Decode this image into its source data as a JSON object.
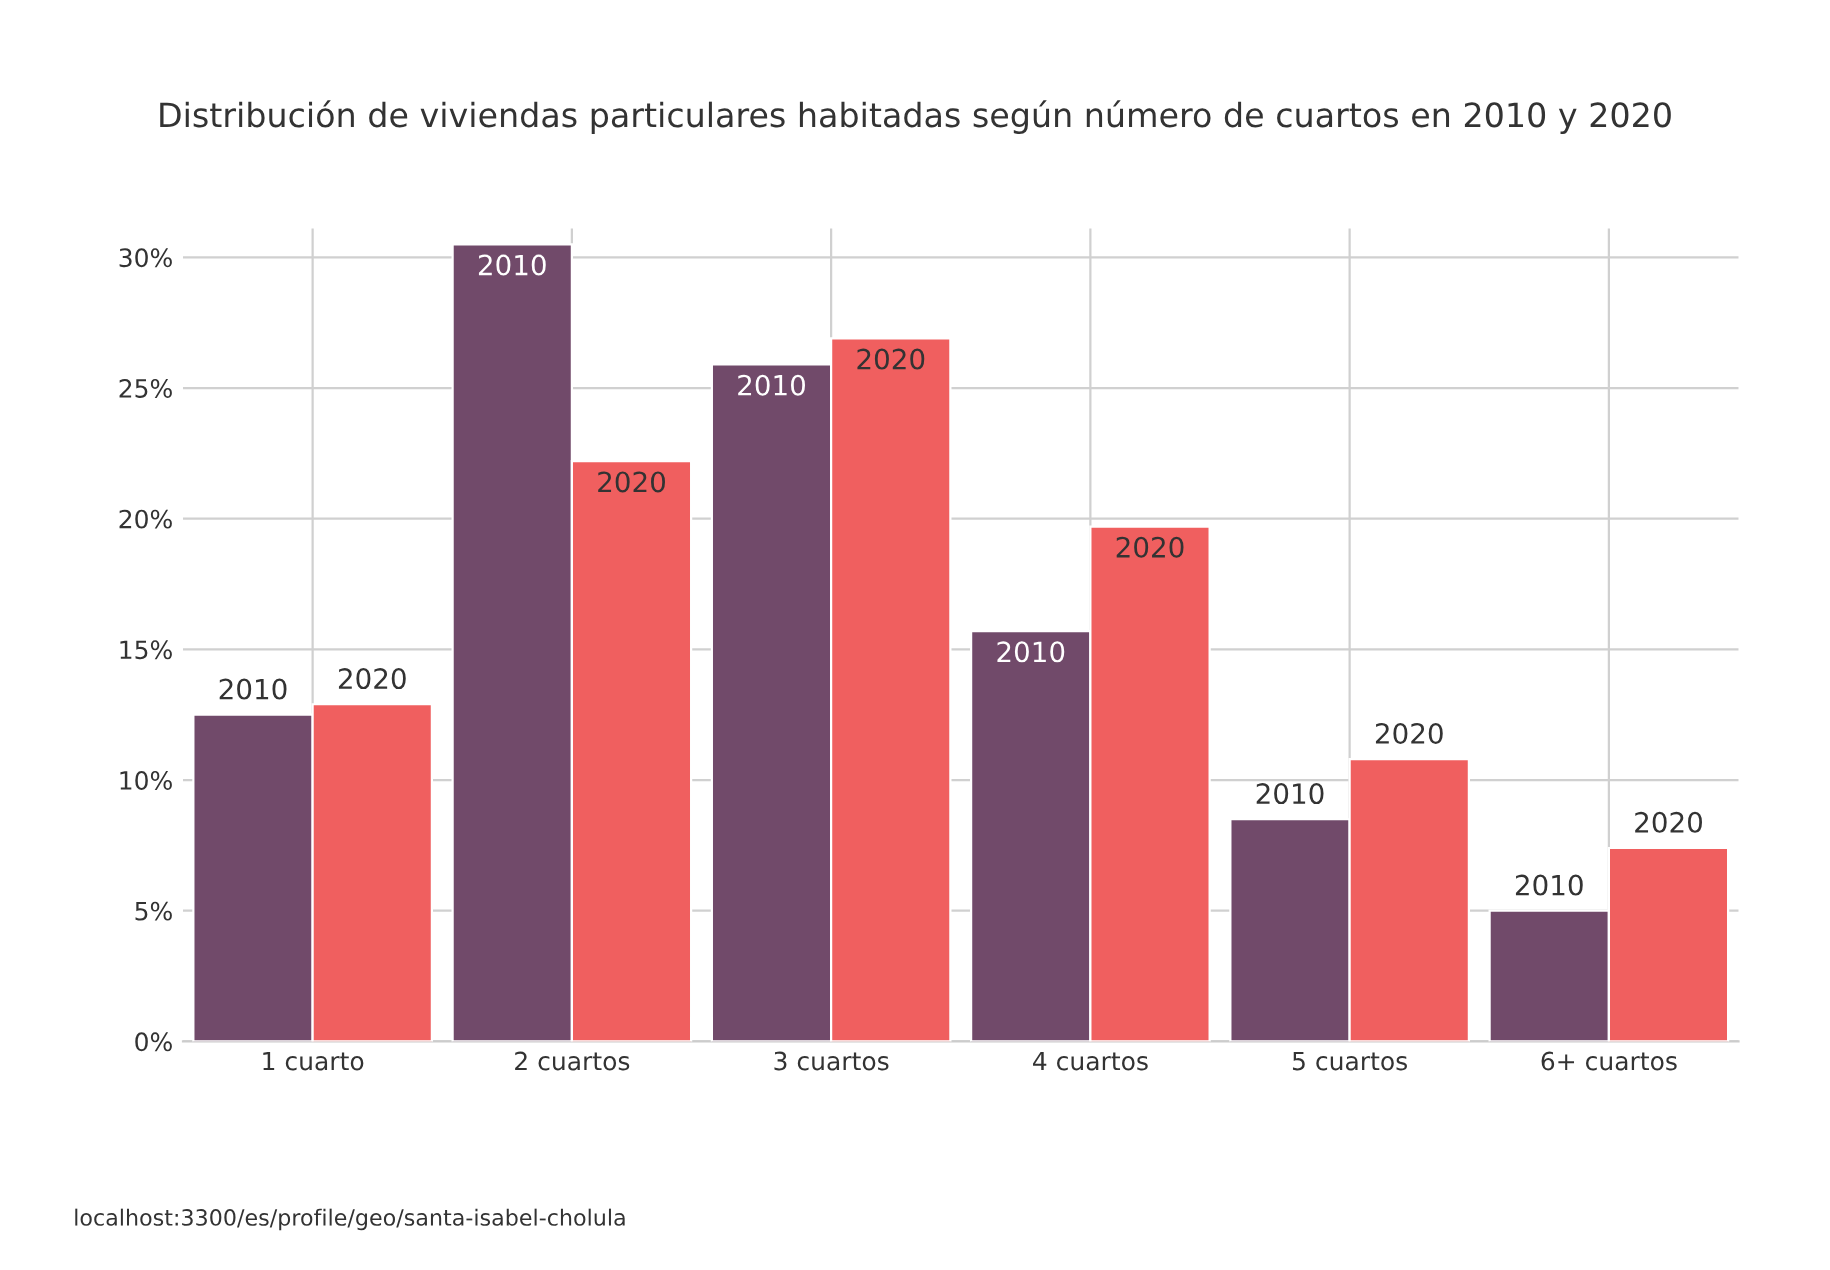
{
  "chart_data": {
    "type": "bar",
    "title": "Distribución de viviendas particulares habitadas según número de cuartos en 2010 y 2020",
    "categories": [
      "1 cuarto",
      "2 cuartos",
      "3 cuartos",
      "4 cuartos",
      "5 cuartos",
      "6+ cuartos"
    ],
    "series": [
      {
        "name": "2010",
        "color": "#714a6a",
        "values": [
          12.5,
          30.5,
          25.9,
          15.7,
          8.5,
          5.0
        ]
      },
      {
        "name": "2020",
        "color": "#f05f5f",
        "values": [
          12.9,
          22.2,
          26.9,
          19.7,
          10.8,
          7.4
        ]
      }
    ],
    "ylim": [
      0,
      31.1
    ],
    "yticks": [
      {
        "value": 0,
        "label": "0%"
      },
      {
        "value": 5,
        "label": "5%"
      },
      {
        "value": 10,
        "label": "10%"
      },
      {
        "value": 15,
        "label": "15%"
      },
      {
        "value": 20,
        "label": "20%"
      },
      {
        "value": 25,
        "label": "25%"
      },
      {
        "value": 30,
        "label": "30%"
      }
    ],
    "grid": true,
    "legend": false,
    "annotations": [
      "localhost:3300/es/profile/geo/santa-isabel-cholula"
    ]
  }
}
